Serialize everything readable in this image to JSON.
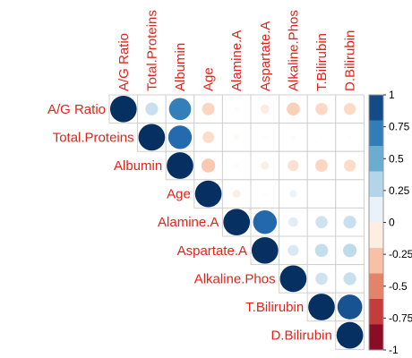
{
  "chart_data": {
    "type": "heatmap",
    "variant": "correlation-circle-upper-triangle",
    "variables": [
      "A/G Ratio",
      "Total.Proteins",
      "Albumin",
      "Age",
      "Alamine.A",
      "Aspartate.A",
      "Alkaline.Phos",
      "T.Bilirubin",
      "D.Bilirubin"
    ],
    "matrix": [
      [
        1.0,
        0.23,
        0.69,
        -0.22,
        -0.03,
        -0.11,
        -0.24,
        -0.21,
        -0.2
      ],
      [
        null,
        1.0,
        0.78,
        -0.19,
        -0.04,
        -0.02,
        -0.03,
        -0.01,
        -0.01
      ],
      [
        null,
        null,
        1.0,
        -0.27,
        -0.03,
        -0.09,
        -0.17,
        -0.22,
        -0.2
      ],
      [
        null,
        null,
        null,
        1.0,
        -0.09,
        -0.02,
        0.08,
        0.01,
        0.01
      ],
      [
        null,
        null,
        null,
        null,
        1.0,
        0.79,
        0.13,
        0.21,
        0.23
      ],
      [
        null,
        null,
        null,
        null,
        null,
        1.0,
        0.17,
        0.24,
        0.26
      ],
      [
        null,
        null,
        null,
        null,
        null,
        null,
        1.0,
        0.21,
        0.23
      ],
      [
        null,
        null,
        null,
        null,
        null,
        null,
        null,
        1.0,
        0.87
      ],
      [
        null,
        null,
        null,
        null,
        null,
        null,
        null,
        null,
        1.0
      ]
    ],
    "legend": {
      "ticks": [
        "1",
        "0.75",
        "0.5",
        "0.25",
        "0",
        "-0.25",
        "-0.5",
        "-0.75",
        "-1"
      ],
      "range": [
        -1,
        1
      ],
      "placement": "right"
    },
    "label_color": "#e2231a",
    "color_scale": [
      "#67001f",
      "#b2182b",
      "#d6604d",
      "#f4a582",
      "#fddbc7",
      "#ffffff",
      "#d1e5f0",
      "#92c5de",
      "#4393c3",
      "#2166ac",
      "#053061"
    ],
    "grid": true
  }
}
